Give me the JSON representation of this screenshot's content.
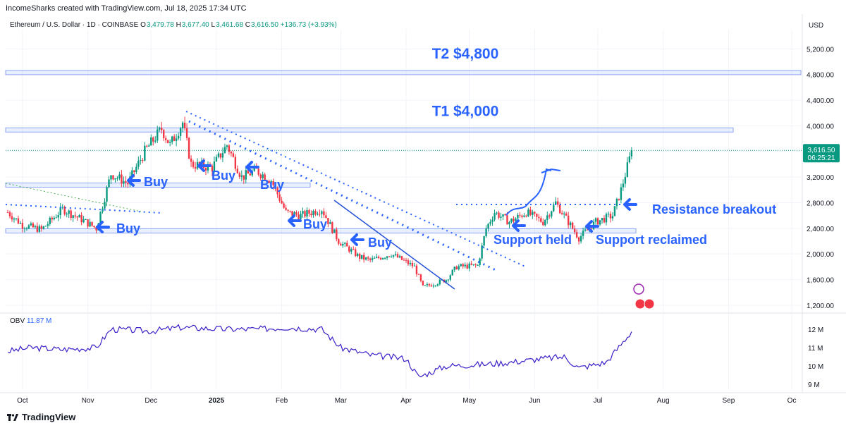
{
  "header": {
    "attribution": "IncomeSharks created with TradingView.com, Jul 18, 2025 17:34 UTC",
    "symbol": "Ethereum / U.S. Dollar · 1D · COINBASE",
    "o_label": "O",
    "o_value": "3,479.78",
    "h_label": "H",
    "h_value": "3,677.40",
    "l_label": "L",
    "l_value": "3,461.68",
    "c_label": "C",
    "c_value": "3,616.50",
    "change": "+136.73 (+3.93%)"
  },
  "footer": {
    "brand": "TradingView"
  },
  "colors": {
    "up": "#089981",
    "down": "#f23645",
    "annotation": "#2962ff",
    "obv": "#3b1fc8",
    "grid": "#f0f3fa"
  },
  "chart_data": [
    {
      "type": "candlestick",
      "title": "Ethereum / U.S. Dollar · 1D · COINBASE",
      "currency_label": "USD",
      "ylim": [
        1100,
        5500
      ],
      "y_ticks": [
        "5,200.00",
        "4,800.00",
        "4,400.00",
        "4,000.00",
        "3,600.00",
        "3,200.00",
        "2,800.00",
        "2,400.00",
        "2,000.00",
        "1,600.00",
        "1,200.00"
      ],
      "y_tick_values": [
        5200,
        4800,
        4400,
        4000,
        3600,
        3200,
        2800,
        2400,
        2000,
        1600,
        1200
      ],
      "x_ticks": [
        "Oct",
        "Nov",
        "Dec",
        "2025",
        "Feb",
        "Mar",
        "Apr",
        "May",
        "Jun",
        "Jul",
        "Aug",
        "Sep",
        "Oc"
      ],
      "last_price_label": "3,616.50",
      "countdown_label": "06:25:21",
      "last_price": 3616.5,
      "horizontal_levels": [
        {
          "label": "T2 $4,800",
          "value": 4830
        },
        {
          "label": "T1 $4,000",
          "value": 3935
        },
        {
          "label": "",
          "value": 3075
        },
        {
          "label": "",
          "value": 2360
        }
      ],
      "annotations": [
        "Buy",
        "Buy",
        "Buy",
        "Buy",
        "Buy",
        "Buy",
        "Support held",
        "Support reclaimed",
        "Resistance breakout"
      ],
      "series_anchor_closes": [
        [
          "2024-09-24",
          2650
        ],
        [
          "2024-10-01",
          2450
        ],
        [
          "2024-10-10",
          2380
        ],
        [
          "2024-10-20",
          2700
        ],
        [
          "2024-10-30",
          2520
        ],
        [
          "2024-11-05",
          2400
        ],
        [
          "2024-11-12",
          3250
        ],
        [
          "2024-11-20",
          3100
        ],
        [
          "2024-11-28",
          3600
        ],
        [
          "2024-12-06",
          3950
        ],
        [
          "2024-12-10",
          3700
        ],
        [
          "2024-12-16",
          4050
        ],
        [
          "2024-12-20",
          3400
        ],
        [
          "2024-12-30",
          3350
        ],
        [
          "2025-01-06",
          3700
        ],
        [
          "2025-01-13",
          3200
        ],
        [
          "2025-01-20",
          3300
        ],
        [
          "2025-01-27",
          3150
        ],
        [
          "2025-02-03",
          2650
        ],
        [
          "2025-02-10",
          2600
        ],
        [
          "2025-02-20",
          2700
        ],
        [
          "2025-02-28",
          2200
        ],
        [
          "2025-03-10",
          1950
        ],
        [
          "2025-03-15",
          1900
        ],
        [
          "2025-03-25",
          2000
        ],
        [
          "2025-04-05",
          1800
        ],
        [
          "2025-04-09",
          1480
        ],
        [
          "2025-04-20",
          1600
        ],
        [
          "2025-04-25",
          1800
        ],
        [
          "2025-05-05",
          1820
        ],
        [
          "2025-05-09",
          2400
        ],
        [
          "2025-05-13",
          2650
        ],
        [
          "2025-05-20",
          2500
        ],
        [
          "2025-05-28",
          2650
        ],
        [
          "2025-06-05",
          2500
        ],
        [
          "2025-06-11",
          2800
        ],
        [
          "2025-06-17",
          2500
        ],
        [
          "2025-06-22",
          2250
        ],
        [
          "2025-06-30",
          2500
        ],
        [
          "2025-07-08",
          2600
        ],
        [
          "2025-07-12",
          3000
        ],
        [
          "2025-07-17",
          3600
        ]
      ]
    },
    {
      "type": "line",
      "title": "OBV",
      "value_label": "11.87 M",
      "ylim": [
        8.7,
        12.8
      ],
      "y_ticks": [
        "12 M",
        "11 M",
        "10 M",
        "9 M"
      ],
      "y_tick_values": [
        12,
        11,
        10,
        9
      ],
      "series_anchor_values": [
        [
          "2024-09-24",
          10.8
        ],
        [
          "2024-10-05",
          11.0
        ],
        [
          "2024-10-20",
          10.9
        ],
        [
          "2024-11-05",
          11.0
        ],
        [
          "2024-11-12",
          12.0
        ],
        [
          "2024-12-01",
          11.9
        ],
        [
          "2024-12-15",
          12.1
        ],
        [
          "2025-01-06",
          12.0
        ],
        [
          "2025-01-20",
          12.0
        ],
        [
          "2025-02-03",
          12.1
        ],
        [
          "2025-02-20",
          12.0
        ],
        [
          "2025-03-01",
          11.0
        ],
        [
          "2025-03-15",
          10.6
        ],
        [
          "2025-04-01",
          10.4
        ],
        [
          "2025-04-07",
          9.4
        ],
        [
          "2025-04-20",
          10.0
        ],
        [
          "2025-05-09",
          10.1
        ],
        [
          "2025-05-20",
          10.2
        ],
        [
          "2025-06-05",
          10.4
        ],
        [
          "2025-06-15",
          10.5
        ],
        [
          "2025-06-22",
          9.9
        ],
        [
          "2025-07-05",
          10.2
        ],
        [
          "2025-07-17",
          11.87
        ]
      ]
    }
  ]
}
